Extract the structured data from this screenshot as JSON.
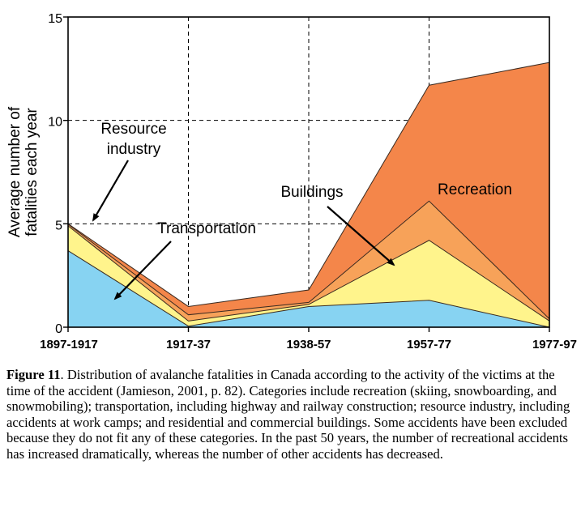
{
  "chart_data": {
    "type": "area",
    "stacked": true,
    "title": "",
    "xlabel": "",
    "ylabel": "Average number of fatalities each year",
    "ylim": [
      0,
      15
    ],
    "yticks": [
      "0",
      "5",
      "10",
      "15"
    ],
    "categories": [
      "1897-1917",
      "1917-37",
      "1938-57",
      "1957-77",
      "1977-97"
    ],
    "grid": true,
    "series": [
      {
        "name": "Transportation",
        "color": "#87d3f2",
        "values": [
          3.7,
          0.05,
          1.0,
          1.3,
          0.0
        ]
      },
      {
        "name": "Resource industry",
        "color": "#fff48c",
        "values": [
          1.2,
          0.25,
          0.1,
          2.9,
          0.3
        ]
      },
      {
        "name": "Buildings",
        "color": "#f7a259",
        "values": [
          0.08,
          0.3,
          0.1,
          1.9,
          0.1
        ]
      },
      {
        "name": "Recreation",
        "color": "#f4864a",
        "values": [
          0.02,
          0.4,
          0.6,
          5.6,
          12.4
        ]
      }
    ],
    "annotations": [
      {
        "text": "Recreation",
        "series": "Recreation"
      },
      {
        "text": "Buildings",
        "series": "Buildings"
      },
      {
        "text": "Resource industry",
        "series": "Resource industry"
      },
      {
        "text": "Transportation",
        "series": "Transportation"
      }
    ]
  },
  "caption": {
    "label": "Figure 11",
    "text": ".  Distribution of avalanche fatalities in Canada according to the activity of the victims at the time of the accident (Jamieson, 2001, p. 82). Categories include recreation (skiing, snowboarding, and snowmobiling); transportation, including highway and railway construction; resource industry, including accidents at work camps; and residential and commercial buildings. Some accidents have been excluded because they do not fit any of these categories. In the past 50 years, the number of recreational accidents has increased dramatically, whereas the number of other accidents has decreased."
  }
}
